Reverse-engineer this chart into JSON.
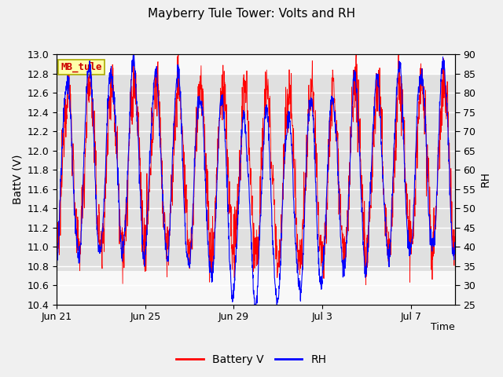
{
  "title": "Mayberry Tule Tower: Volts and RH",
  "xlabel": "Time",
  "ylabel_left": "BattV (V)",
  "ylabel_right": "RH",
  "legend_label": "MB_tule",
  "series_labels": [
    "Battery V",
    "RH"
  ],
  "series_colors": [
    "red",
    "blue"
  ],
  "ylim_left": [
    10.4,
    13.0
  ],
  "ylim_right": [
    25,
    90
  ],
  "yticks_left": [
    10.4,
    10.6,
    10.8,
    11.0,
    11.2,
    11.4,
    11.6,
    11.8,
    12.0,
    12.2,
    12.4,
    12.6,
    12.8,
    13.0
  ],
  "yticks_right": [
    25,
    30,
    35,
    40,
    45,
    50,
    55,
    60,
    65,
    70,
    75,
    80,
    85,
    90
  ],
  "shading_ymin": 10.75,
  "shading_ymax": 12.8,
  "shading_color": "#e0e0e0",
  "background_color": "#f0f0f0",
  "plot_bg_color": "#f8f8f8",
  "grid_color": "#ffffff",
  "x_tick_labels": [
    "Jun 21",
    "Jun 25",
    "Jun 29",
    "Jul 3",
    "Jul 7"
  ],
  "x_tick_positions": [
    0,
    4,
    8,
    12,
    16
  ],
  "total_days": 18,
  "seed": 12345
}
